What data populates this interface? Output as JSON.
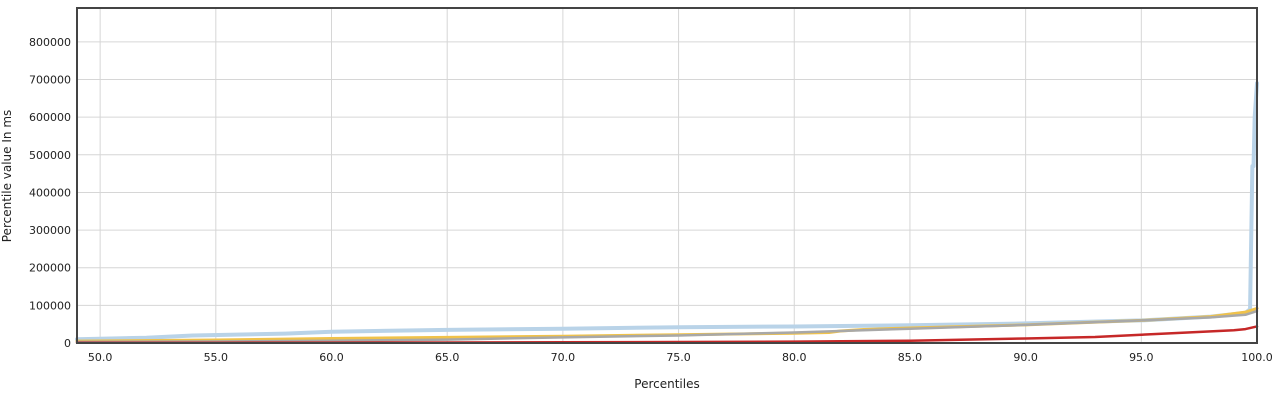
{
  "chart_data": {
    "type": "line",
    "title": "",
    "xlabel": "Percentiles",
    "ylabel": "Percentile value In ms",
    "xlim": [
      49.0,
      100.0
    ],
    "ylim": [
      0,
      890000
    ],
    "grid": true,
    "legend": "none",
    "xticks": [
      50,
      55,
      60,
      65,
      70,
      75,
      80,
      85,
      90,
      95,
      100
    ],
    "xtick_labels": [
      "50.0",
      "55.0",
      "60.0",
      "65.0",
      "70.0",
      "75.0",
      "80.0",
      "85.0",
      "90.0",
      "95.0",
      "100.0"
    ],
    "yticks": [
      0,
      100000,
      200000,
      300000,
      400000,
      500000,
      600000,
      700000,
      800000
    ],
    "ytick_labels": [
      "0",
      "100000",
      "200000",
      "300000",
      "400000",
      "500000",
      "600000",
      "700000",
      "800000"
    ],
    "series": [
      {
        "color": "#b9d3e8",
        "x": [
          49,
          52,
          54,
          58,
          60,
          65,
          70,
          75,
          80,
          85,
          90,
          95,
          98,
          99.5,
          99.7,
          99.8,
          99.85,
          99.9,
          100
        ],
        "y": [
          10000,
          14000,
          20000,
          25000,
          30000,
          35000,
          38000,
          42000,
          44000,
          47000,
          52000,
          60000,
          70000,
          80000,
          90000,
          470000,
          470000,
          600000,
          690000
        ]
      },
      {
        "color": "#f0c24a",
        "x": [
          49,
          55,
          60,
          65,
          70,
          75,
          80,
          81.5,
          82,
          83,
          85,
          90,
          95,
          98,
          99.5,
          100
        ],
        "y": [
          5000,
          8000,
          12000,
          15000,
          18000,
          22000,
          26000,
          28000,
          32000,
          36000,
          40000,
          48000,
          60000,
          70000,
          82000,
          92000
        ]
      },
      {
        "color": "#a8a8a8",
        "x": [
          49,
          55,
          60,
          65,
          70,
          75,
          80,
          85,
          90,
          95,
          98,
          99.5,
          100
        ],
        "y": [
          3000,
          4000,
          6000,
          9000,
          15000,
          20000,
          28000,
          38000,
          48000,
          60000,
          68000,
          75000,
          85000
        ]
      },
      {
        "color": "#c62828",
        "x": [
          49,
          55,
          60,
          65,
          70,
          75,
          80,
          85,
          90,
          93,
          95,
          97,
          99,
          99.5,
          100
        ],
        "y": [
          500,
          800,
          1000,
          1500,
          2000,
          2500,
          3500,
          6000,
          12000,
          16000,
          22000,
          28000,
          34000,
          37000,
          44000
        ]
      }
    ]
  }
}
